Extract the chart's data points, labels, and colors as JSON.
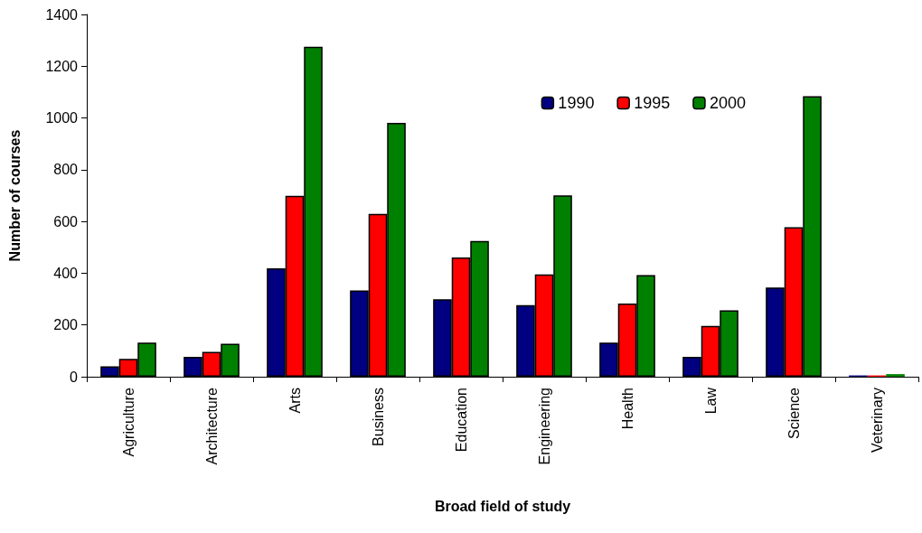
{
  "chart_data": {
    "type": "bar",
    "xlabel": "Broad field of study",
    "ylabel": "Number of courses",
    "categories": [
      "Agriculture",
      "Architecture",
      "Arts",
      "Business",
      "Education",
      "Engineering",
      "Health",
      "Law",
      "Science",
      "Veterinary"
    ],
    "series": [
      {
        "name": "1990",
        "color": "#000080",
        "values": [
          40,
          77,
          419,
          333,
          299,
          277,
          132,
          77,
          345,
          5
        ]
      },
      {
        "name": "1995",
        "color": "#ff0000",
        "values": [
          69,
          96,
          699,
          629,
          461,
          395,
          283,
          196,
          578,
          5
        ]
      },
      {
        "name": "2000",
        "color": "#008000",
        "values": [
          132,
          127,
          1275,
          981,
          525,
          701,
          393,
          257,
          1084,
          10
        ]
      }
    ],
    "ylim": [
      0,
      1400
    ],
    "yticks": [
      0,
      200,
      400,
      600,
      800,
      1000,
      1200,
      1400
    ],
    "grid": false,
    "legend": "top right"
  }
}
